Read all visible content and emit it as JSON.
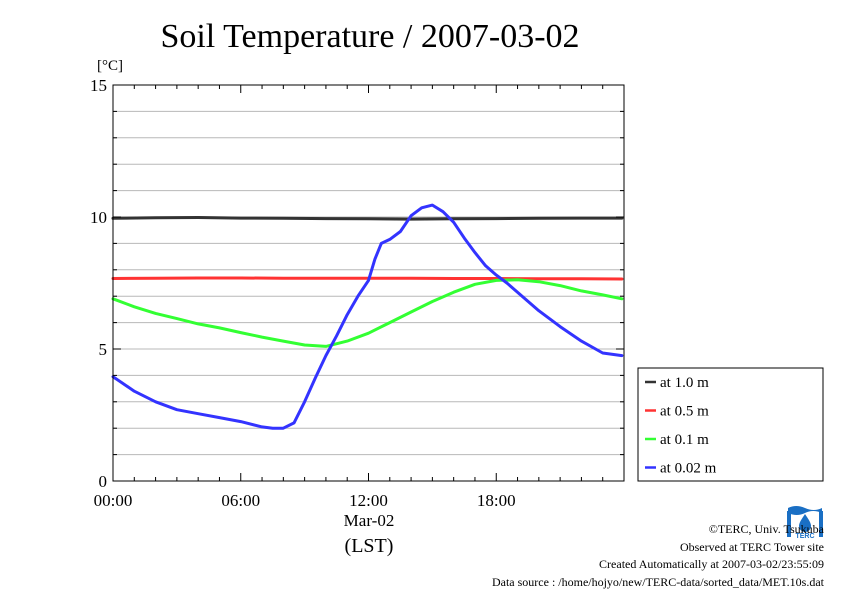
{
  "chart_data": {
    "type": "line",
    "title": "Soil Temperature / 2007-03-02",
    "ylabel": "[°C]",
    "xlabel": "(LST)",
    "date_label": "Mar-02",
    "ylim": [
      0,
      15
    ],
    "yticks": [
      0,
      5,
      10,
      15
    ],
    "xlim": [
      0,
      24
    ],
    "xticks": [
      {
        "value": 0,
        "label": "00:00"
      },
      {
        "value": 6,
        "label": "06:00"
      },
      {
        "value": 12,
        "label": "12:00"
      },
      {
        "value": 18,
        "label": "18:00"
      }
    ],
    "grid": true,
    "legend_position": "right",
    "series": [
      {
        "name": "at 1.0 m",
        "color": "#333333",
        "x": [
          0,
          2,
          4,
          6,
          8,
          10,
          12,
          14,
          16,
          18,
          20,
          22,
          23.9
        ],
        "y": [
          9.95,
          9.97,
          9.98,
          9.96,
          9.95,
          9.94,
          9.93,
          9.92,
          9.93,
          9.94,
          9.95,
          9.96,
          9.96
        ]
      },
      {
        "name": "at 0.5 m",
        "color": "#ff3333",
        "x": [
          0,
          2,
          4,
          6,
          8,
          10,
          12,
          14,
          16,
          18,
          20,
          22,
          23.9
        ],
        "y": [
          7.67,
          7.68,
          7.69,
          7.69,
          7.68,
          7.68,
          7.68,
          7.68,
          7.67,
          7.67,
          7.66,
          7.66,
          7.65
        ]
      },
      {
        "name": "at 0.1 m",
        "color": "#33ff33",
        "x": [
          0,
          1,
          2,
          3,
          4,
          5,
          6,
          7,
          8,
          9,
          10,
          11,
          12,
          13,
          14,
          15,
          16,
          17,
          18,
          19,
          20,
          21,
          22,
          23,
          23.9
        ],
        "y": [
          6.9,
          6.6,
          6.35,
          6.15,
          5.95,
          5.8,
          5.62,
          5.45,
          5.3,
          5.15,
          5.1,
          5.3,
          5.6,
          6.0,
          6.4,
          6.8,
          7.15,
          7.45,
          7.6,
          7.62,
          7.55,
          7.4,
          7.2,
          7.05,
          6.9
        ]
      },
      {
        "name": "at 0.02 m",
        "color": "#3333ff",
        "x": [
          0,
          1,
          2,
          3,
          4,
          5,
          6,
          7,
          7.5,
          8,
          8.5,
          9,
          9.5,
          10,
          10.5,
          11,
          11.5,
          12,
          12.3,
          12.6,
          13,
          13.5,
          14,
          14.5,
          15,
          15.5,
          16,
          16.5,
          17,
          17.5,
          18,
          18.5,
          19,
          20,
          21,
          22,
          23,
          23.9
        ],
        "y": [
          3.95,
          3.4,
          3.0,
          2.7,
          2.55,
          2.4,
          2.25,
          2.05,
          2.0,
          2.0,
          2.2,
          3.0,
          3.9,
          4.75,
          5.5,
          6.3,
          7.0,
          7.6,
          8.4,
          9.0,
          9.15,
          9.45,
          10.05,
          10.35,
          10.45,
          10.2,
          9.8,
          9.2,
          8.65,
          8.15,
          7.8,
          7.5,
          7.15,
          6.45,
          5.85,
          5.3,
          4.85,
          4.75
        ]
      }
    ]
  },
  "credits": {
    "copyright": "©TERC, Univ. Tsukuba",
    "observed": "Observed at TERC Tower site",
    "created": "Created Automatically at 2007-03-02/23:55:09",
    "source": "Data source : /home/hojyo/new/TERC-data/sorted_data/MET.10s.dat"
  },
  "logo": {
    "text": "TERC",
    "color": "#1a6fc4"
  }
}
